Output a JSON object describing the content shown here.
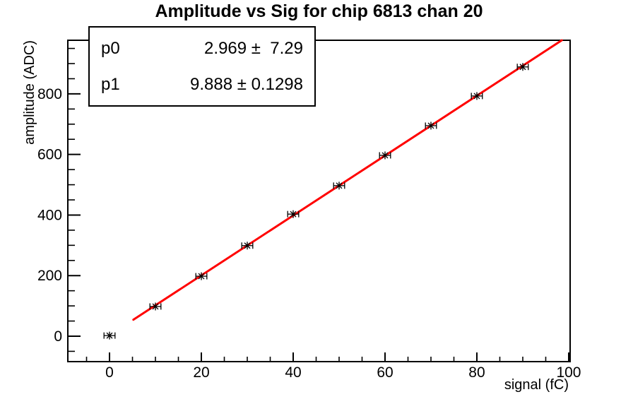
{
  "chart_data": {
    "type": "scatter",
    "title": "Amplitude vs Sig for chip 6813 chan 20",
    "xlabel": "signal (fC)",
    "ylabel": "amplitude (ADC)",
    "xlim": [
      -9.08,
      100.31
    ],
    "ylim": [
      -84,
      977
    ],
    "grid": false,
    "axis_color": "#000000",
    "x_ticks": {
      "major": [
        0,
        20,
        40,
        60,
        80,
        100
      ],
      "labels": [
        "0",
        "20",
        "40",
        "60",
        "80",
        "100"
      ],
      "minor_step": 5
    },
    "y_ticks": {
      "major": [
        0,
        200,
        400,
        600,
        800
      ],
      "labels": [
        "0",
        "200",
        "400",
        "600",
        "800"
      ],
      "minor_step": 50
    },
    "series": [
      {
        "name": "amplitude-vs-signal-points",
        "marker": "star",
        "color": "#000000",
        "x": [
          0,
          10,
          20,
          30,
          40,
          50,
          60,
          70,
          80,
          90
        ],
        "y": [
          2,
          98,
          198,
          299,
          403,
          497,
          597,
          695,
          793,
          889
        ],
        "xerr": 1.2
      }
    ],
    "fit": {
      "type": "linear",
      "p0": 2.969,
      "p1": 9.888,
      "draw_range": [
        5.2,
        98.5
      ],
      "color": "#ff0000",
      "line_width": 3
    },
    "stats_box": {
      "rows": [
        {
          "label": "p0",
          "value": "2.969 ±  7.29"
        },
        {
          "label": "p1",
          "value": "9.888 ± 0.1298"
        }
      ]
    }
  }
}
